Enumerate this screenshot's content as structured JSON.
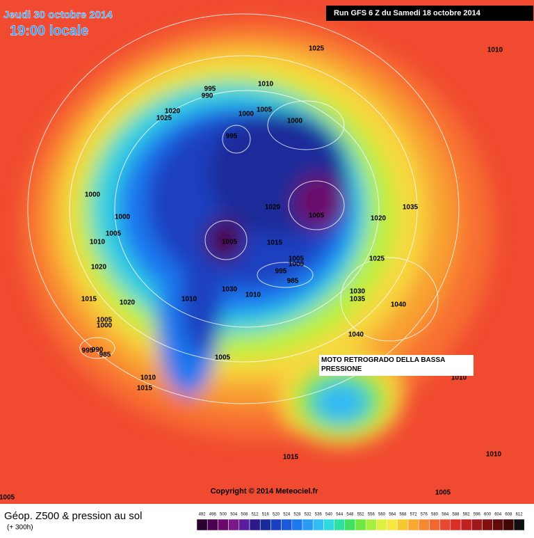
{
  "header": {
    "date": "Jeudi 30 octobre 2014",
    "time": "19:00 locale",
    "run": "Run GFS 6 Z du Samedi 18 octobre 2014"
  },
  "annotation": "MOTO RETROGRADO DELLA BASSA PRESSIONE",
  "copyright": "Copyright © 2014 Meteociel.fr",
  "footer": {
    "title": "Géop. Z500 & pression au sol",
    "lead": "(+ 300h)"
  },
  "isobar_labels": [
    1025,
    1010,
    995,
    990,
    1010,
    1020,
    1025,
    1000,
    1005,
    1000,
    995,
    1000,
    1000,
    1005,
    1010,
    1020,
    1020,
    1005,
    1020,
    1035,
    1005,
    1015,
    1005,
    1000,
    995,
    985,
    1025,
    1030,
    1035,
    1040,
    1030,
    1010,
    1010,
    1015,
    1020,
    1005,
    1000,
    1040,
    995,
    990,
    985,
    1010,
    1015,
    1005,
    1010,
    1015,
    1010,
    1005,
    1005
  ],
  "legend": {
    "levels": [
      492,
      496,
      500,
      504,
      508,
      512,
      516,
      520,
      524,
      528,
      532,
      536,
      540,
      544,
      548,
      552,
      556,
      560,
      564,
      568,
      572,
      576,
      580,
      584,
      588,
      592,
      596,
      600,
      604,
      608,
      612
    ],
    "colors": [
      "#2a0030",
      "#4b0050",
      "#6a0a6a",
      "#7a1a8a",
      "#5a1e9a",
      "#2a1a8a",
      "#1a2a9a",
      "#1a40c0",
      "#1a5ad8",
      "#1e78f0",
      "#2a9af5",
      "#30bdf5",
      "#30d8e0",
      "#30e0a0",
      "#40e060",
      "#70e840",
      "#a8f040",
      "#e0f040",
      "#f8e840",
      "#f8c830",
      "#f8a830",
      "#f88830",
      "#f06830",
      "#e84830",
      "#d83028",
      "#c02020",
      "#a01818",
      "#801010",
      "#600a0a",
      "#400505",
      "#101010"
    ]
  }
}
